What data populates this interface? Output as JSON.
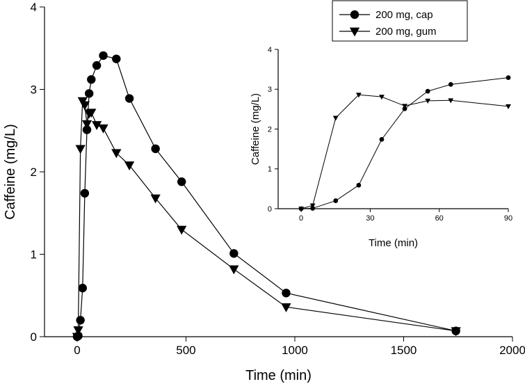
{
  "chart_data": [
    {
      "type": "line",
      "xlabel": "Time (min)",
      "ylabel": "Caffeine (mg/L)",
      "xlim": [
        -150,
        2000
      ],
      "ylim": [
        0,
        4
      ],
      "xticks": [
        "0",
        "500",
        "1000",
        "1500",
        "2000"
      ],
      "yticks": [
        "0",
        "1",
        "2",
        "3",
        "4"
      ],
      "grid": false,
      "legend": {
        "placement": "top-right"
      },
      "series": [
        {
          "name": "200 mg, cap",
          "marker": "circle",
          "x": [
            0,
            5,
            15,
            25,
            35,
            45,
            55,
            65,
            90,
            120,
            180,
            240,
            360,
            480,
            720,
            960,
            1740
          ],
          "y": [
            0.0,
            0.01,
            0.2,
            0.59,
            1.74,
            2.51,
            2.95,
            3.12,
            3.29,
            3.41,
            3.37,
            2.89,
            2.28,
            1.88,
            1.01,
            0.53,
            0.07
          ]
        },
        {
          "name": "200 mg, gum",
          "marker": "triangle-down",
          "x": [
            0,
            5,
            15,
            25,
            35,
            45,
            55,
            65,
            90,
            120,
            180,
            240,
            360,
            480,
            720,
            960,
            1740
          ],
          "y": [
            0.0,
            0.08,
            2.28,
            2.86,
            2.81,
            2.58,
            2.71,
            2.72,
            2.57,
            2.53,
            2.23,
            2.08,
            1.68,
            1.3,
            0.82,
            0.36,
            0.07
          ]
        }
      ]
    },
    {
      "type": "line",
      "xlabel": "Time (min)",
      "ylabel": "Caffeine (mg/L)",
      "xlim": [
        -10,
        90
      ],
      "ylim": [
        0,
        4
      ],
      "xticks": [
        "0",
        "30",
        "60",
        "90"
      ],
      "yticks": [
        "0",
        "1",
        "2",
        "3",
        "4"
      ],
      "grid": false,
      "series": [
        {
          "marker": "circle",
          "x": [
            0,
            5,
            15,
            25,
            35,
            45,
            55,
            65,
            90
          ],
          "y": [
            0.0,
            0.01,
            0.2,
            0.59,
            1.74,
            2.51,
            2.95,
            3.12,
            3.29
          ]
        },
        {
          "marker": "triangle-down",
          "x": [
            0,
            5,
            15,
            25,
            35,
            45,
            55,
            65,
            90
          ],
          "y": [
            0.0,
            0.08,
            2.28,
            2.86,
            2.81,
            2.58,
            2.71,
            2.72,
            2.57
          ]
        }
      ]
    }
  ]
}
